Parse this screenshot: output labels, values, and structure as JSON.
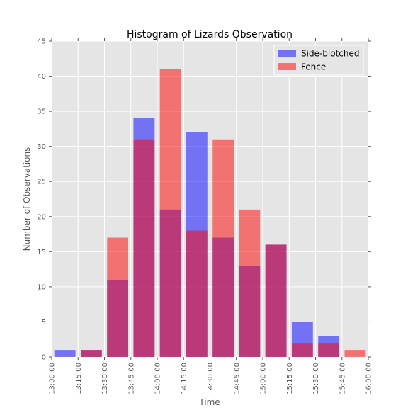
{
  "chart_data": {
    "type": "bar",
    "title": "Histogram of Lizards Observation",
    "xlabel": "Time",
    "ylabel": "Number of Observations",
    "ylim": [
      0,
      45
    ],
    "yticks": [
      0,
      5,
      10,
      15,
      20,
      25,
      30,
      35,
      40,
      45
    ],
    "x_ticks": [
      "13:00:00",
      "13:15:00",
      "13:30:00",
      "13:45:00",
      "14:00:00",
      "14:15:00",
      "14:30:00",
      "14:45:00",
      "15:00:00",
      "15:15:00",
      "15:30:00",
      "15:45:00",
      "16:00:00"
    ],
    "bin_minutes": 15,
    "grid": true,
    "legend_position": "top-right",
    "series": [
      {
        "name": "Side-blotched",
        "color": "#0000ff",
        "values": [
          1,
          1,
          11,
          34,
          21,
          32,
          17,
          13,
          16,
          5,
          3,
          0
        ]
      },
      {
        "name": "Fence",
        "color": "#ff0000",
        "values": [
          0,
          1,
          17,
          31,
          41,
          18,
          31,
          21,
          16,
          2,
          2,
          1
        ]
      }
    ]
  }
}
